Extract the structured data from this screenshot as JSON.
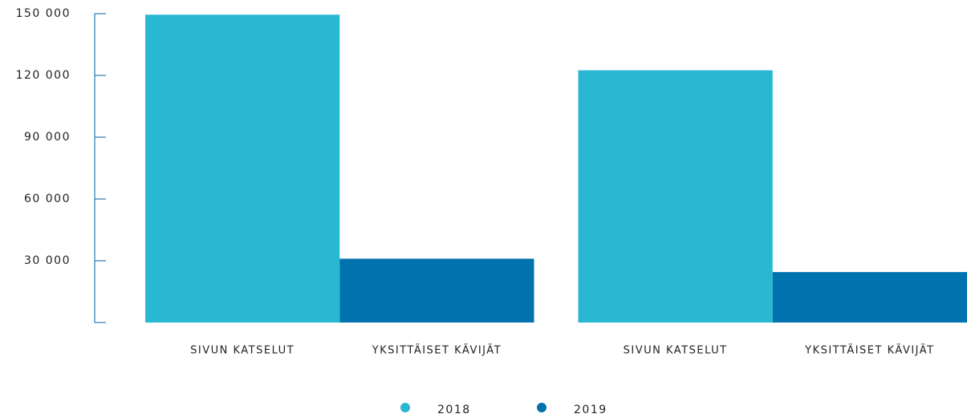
{
  "chart_data": {
    "type": "bar",
    "categories": [
      "SIVUN KATSELUT",
      "YKSITTÄISET KÄVIJÄT",
      "SIVUN KATSELUT",
      "YKSITTÄISET KÄVIJÄT"
    ],
    "series": [
      {
        "name": "2018",
        "color": "#29b8d2",
        "values": [
          149500,
          null,
          122500,
          null
        ]
      },
      {
        "name": "2019",
        "color": "#0073ae",
        "values": [
          null,
          31000,
          null,
          24500
        ]
      }
    ],
    "ylim": [
      0,
      150000
    ],
    "yticks": [
      {
        "value": 30000,
        "label": "30 000"
      },
      {
        "value": 60000,
        "label": "60 000"
      },
      {
        "value": 90000,
        "label": "90 000"
      },
      {
        "value": 120000,
        "label": "120 000"
      },
      {
        "value": 150000,
        "label": "150 000"
      }
    ],
    "legend": "bottom"
  }
}
